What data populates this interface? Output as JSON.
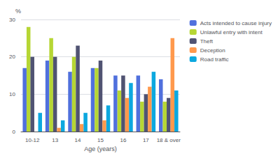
{
  "chart_data": {
    "type": "bar",
    "categories": [
      "10-12",
      "13",
      "14",
      "15",
      "16",
      "17",
      "18 & over"
    ],
    "series": [
      {
        "name": "Acts intended to cause injury",
        "values": [
          17,
          19,
          16,
          17,
          15,
          15,
          14
        ]
      },
      {
        "name": "Unlawful entry with intent",
        "values": [
          28,
          25,
          20,
          17,
          11,
          8,
          8
        ]
      },
      {
        "name": "Theft",
        "values": [
          20,
          20,
          23,
          19,
          15,
          10,
          9
        ]
      },
      {
        "name": "Deception",
        "values": [
          0,
          1,
          2,
          3,
          9,
          12,
          25
        ]
      },
      {
        "name": "Road traffic",
        "values": [
          5,
          3,
          5,
          7,
          13,
          16,
          11
        ]
      }
    ],
    "xlabel": "Age (years)",
    "ylabel": "%",
    "ylim": [
      0,
      30
    ],
    "yticks": [
      0,
      10,
      20,
      30
    ],
    "grid": true,
    "legend": "right"
  }
}
